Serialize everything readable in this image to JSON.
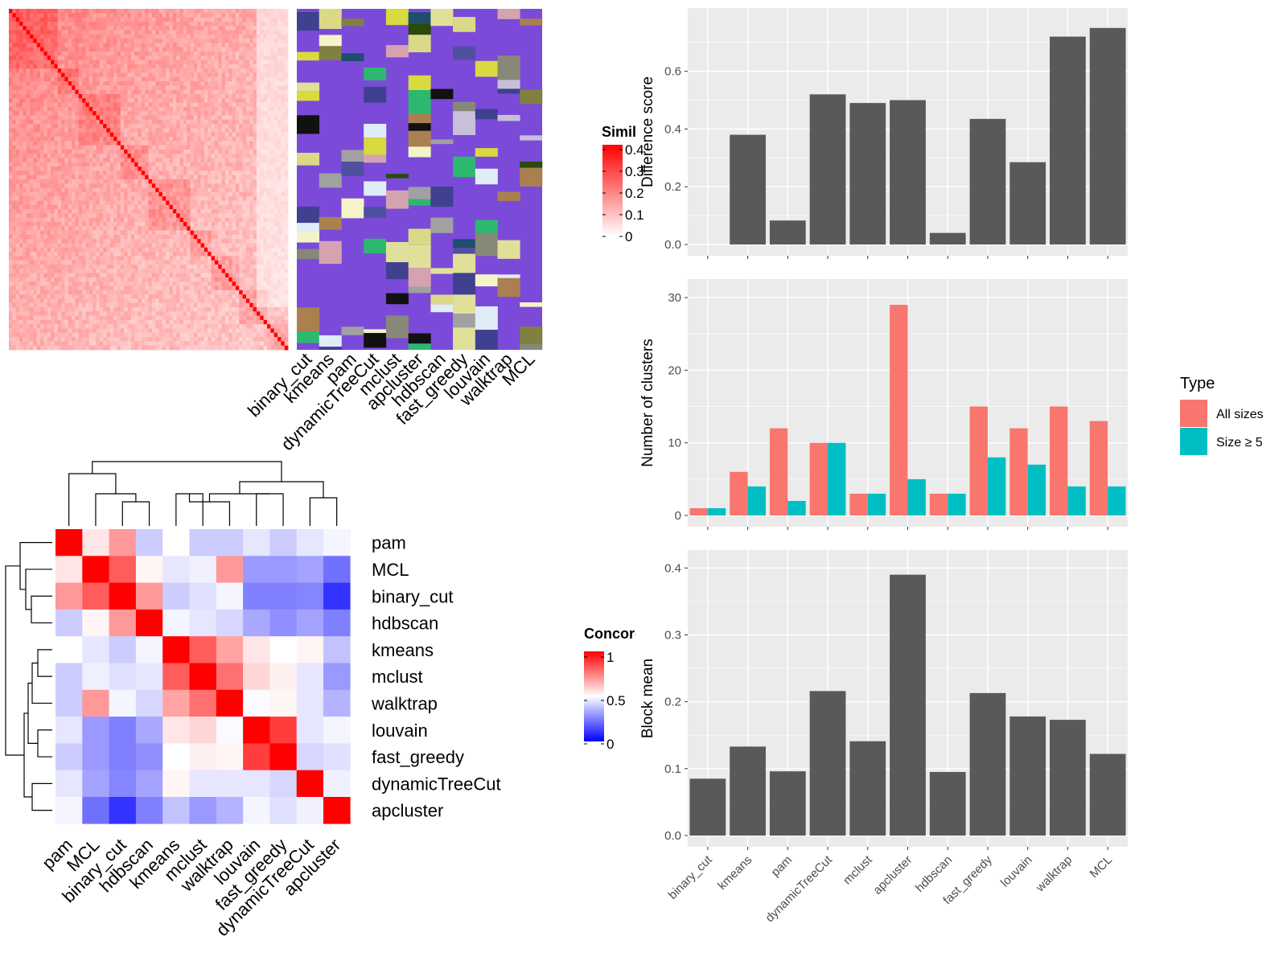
{
  "colors": {
    "panel_bg": "#ebebeb",
    "grid": "#ffffff",
    "bar_dark": "#595959",
    "all_sizes": "#f8766d",
    "size_ge5": "#00bfc4",
    "heat_high": "#ff0000",
    "heat_mid": "#ffffff",
    "heat_low": "#0000ff"
  },
  "methods_bar_order": [
    "binary_cut",
    "kmeans",
    "pam",
    "dynamicTreeCut",
    "mclust",
    "apcluster",
    "hdbscan",
    "fast_greedy",
    "louvain",
    "walktrap",
    "MCL"
  ],
  "similarity_heatmap": {
    "legend_title": "Similarity",
    "legend_ticks": [
      "0.4",
      "0.3",
      "0.2",
      "0.1",
      "0"
    ],
    "column_labels": [
      "binary_cut",
      "kmeans",
      "pam",
      "dynamicTreeCut",
      "mclust",
      "apcluster",
      "hdbscan",
      "fast_greedy",
      "louvain",
      "walktrap",
      "MCL"
    ]
  },
  "concordance_heatmap": {
    "legend_title": "Concordance",
    "legend_ticks": [
      "1",
      "0.5",
      "0"
    ],
    "order": [
      "pam",
      "MCL",
      "binary_cut",
      "hdbscan",
      "kmeans",
      "mclust",
      "walktrap",
      "louvain",
      "fast_greedy",
      "dynamicTreeCut",
      "apcluster"
    ],
    "matrix": [
      [
        1.0,
        0.55,
        0.7,
        0.4,
        0.5,
        0.4,
        0.4,
        0.45,
        0.4,
        0.45,
        0.48
      ],
      [
        0.55,
        1.0,
        0.82,
        0.52,
        0.45,
        0.47,
        0.7,
        0.3,
        0.3,
        0.32,
        0.22
      ],
      [
        0.7,
        0.82,
        1.0,
        0.7,
        0.4,
        0.44,
        0.48,
        0.25,
        0.25,
        0.26,
        0.1
      ],
      [
        0.4,
        0.52,
        0.7,
        1.0,
        0.48,
        0.45,
        0.42,
        0.33,
        0.28,
        0.32,
        0.25
      ],
      [
        0.5,
        0.45,
        0.4,
        0.48,
        1.0,
        0.82,
        0.68,
        0.55,
        0.5,
        0.52,
        0.38
      ],
      [
        0.4,
        0.47,
        0.44,
        0.45,
        0.82,
        1.0,
        0.78,
        0.58,
        0.53,
        0.45,
        0.3
      ],
      [
        0.4,
        0.7,
        0.48,
        0.42,
        0.68,
        0.78,
        1.0,
        0.49,
        0.52,
        0.45,
        0.35
      ],
      [
        0.45,
        0.3,
        0.25,
        0.33,
        0.55,
        0.58,
        0.49,
        1.0,
        0.88,
        0.45,
        0.48
      ],
      [
        0.4,
        0.3,
        0.25,
        0.28,
        0.5,
        0.53,
        0.52,
        0.88,
        1.0,
        0.42,
        0.44
      ],
      [
        0.45,
        0.32,
        0.26,
        0.32,
        0.52,
        0.45,
        0.45,
        0.45,
        0.42,
        1.0,
        0.47
      ],
      [
        0.48,
        0.22,
        0.1,
        0.25,
        0.38,
        0.3,
        0.35,
        0.48,
        0.44,
        0.47,
        1.0
      ]
    ]
  },
  "chart_data": [
    {
      "type": "bar",
      "categories": [
        "binary_cut",
        "kmeans",
        "pam",
        "dynamicTreeCut",
        "mclust",
        "apcluster",
        "hdbscan",
        "fast_greedy",
        "louvain",
        "walktrap",
        "MCL"
      ],
      "values": [
        0.0,
        0.38,
        0.083,
        0.52,
        0.49,
        0.5,
        0.04,
        0.435,
        0.285,
        0.72,
        0.75
      ],
      "ylabel": "Difference score",
      "ylim": [
        0,
        0.78
      ],
      "yticks": [
        "0.0",
        "0.2",
        "0.4",
        "0.6"
      ],
      "grid": true
    },
    {
      "type": "bar",
      "categories": [
        "binary_cut",
        "kmeans",
        "pam",
        "dynamicTreeCut",
        "mclust",
        "apcluster",
        "hdbscan",
        "fast_greedy",
        "louvain",
        "walktrap",
        "MCL"
      ],
      "series": [
        {
          "name": "All sizes",
          "values": [
            1,
            6,
            12,
            10,
            3,
            29,
            3,
            15,
            12,
            15,
            13
          ]
        },
        {
          "name": "Size ≥ 5",
          "values": [
            1,
            4,
            2,
            10,
            3,
            5,
            3,
            8,
            7,
            4,
            4
          ]
        }
      ],
      "ylabel": "Number of clusters",
      "ylim": [
        0,
        31
      ],
      "yticks": [
        "0",
        "10",
        "20",
        "30"
      ],
      "legend_title": "Type",
      "legend_position": "right",
      "grid": true
    },
    {
      "type": "bar",
      "categories": [
        "binary_cut",
        "kmeans",
        "pam",
        "dynamicTreeCut",
        "mclust",
        "apcluster",
        "hdbscan",
        "fast_greedy",
        "louvain",
        "walktrap",
        "MCL"
      ],
      "values": [
        0.085,
        0.133,
        0.096,
        0.216,
        0.141,
        0.39,
        0.095,
        0.213,
        0.178,
        0.173,
        0.122
      ],
      "ylabel": "Block mean",
      "ylim": [
        0,
        0.41
      ],
      "yticks": [
        "0.0",
        "0.1",
        "0.2",
        "0.3",
        "0.4"
      ],
      "grid": true
    }
  ]
}
